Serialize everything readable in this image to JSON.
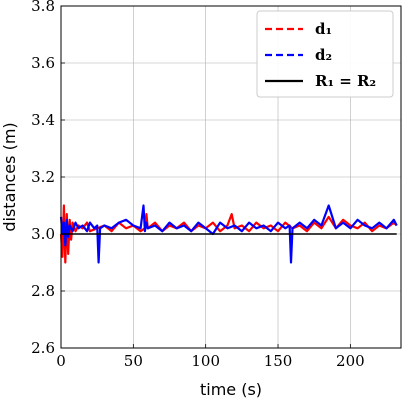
{
  "chart_data": {
    "type": "line",
    "xlabel": "time (s)",
    "ylabel": "distances (m)",
    "xlim": [
      0,
      235
    ],
    "ylim": [
      2.6,
      3.8
    ],
    "xticks": [
      "0",
      "50",
      "100",
      "150",
      "200"
    ],
    "xtick_values": [
      0,
      50,
      100,
      150,
      200
    ],
    "yticks": [
      "2.6",
      "2.8",
      "3.0",
      "3.2",
      "3.4",
      "3.6",
      "3.8"
    ],
    "ytick_values": [
      2.6,
      2.8,
      3.0,
      3.2,
      3.4,
      3.6,
      3.8
    ],
    "grid": true,
    "legend_position": "top-right",
    "series": [
      {
        "name": "d₁",
        "color": "#ff0000",
        "style": "dashed",
        "x": [
          0,
          1,
          2,
          3,
          4,
          5,
          6,
          7,
          8,
          10,
          12,
          15,
          18,
          20,
          25,
          30,
          35,
          40,
          45,
          50,
          55,
          58,
          59,
          60,
          65,
          70,
          75,
          80,
          85,
          90,
          95,
          100,
          105,
          110,
          115,
          118,
          120,
          125,
          130,
          135,
          140,
          145,
          150,
          155,
          160,
          165,
          170,
          175,
          180,
          185,
          190,
          195,
          200,
          205,
          210,
          215,
          220,
          225,
          230,
          232
        ],
        "y": [
          3.0,
          2.92,
          3.1,
          2.9,
          3.07,
          2.93,
          3.05,
          2.98,
          3.04,
          3.01,
          3.03,
          3.02,
          3.04,
          3.01,
          3.02,
          3.03,
          3.01,
          3.04,
          3.02,
          3.03,
          3.01,
          3.02,
          3.07,
          3.02,
          3.04,
          3.01,
          3.03,
          3.02,
          3.04,
          3.01,
          3.03,
          3.02,
          3.04,
          3.01,
          3.03,
          3.07,
          3.02,
          3.03,
          3.01,
          3.04,
          3.02,
          3.03,
          3.01,
          3.04,
          3.02,
          3.03,
          3.01,
          3.04,
          3.02,
          3.06,
          3.02,
          3.05,
          3.03,
          3.02,
          3.04,
          3.01,
          3.03,
          3.02,
          3.04,
          3.03
        ]
      },
      {
        "name": "d₂",
        "color": "#0000ff",
        "style": "dashed",
        "x": [
          0,
          1,
          2,
          3,
          4,
          5,
          6,
          8,
          10,
          12,
          15,
          18,
          20,
          23,
          25,
          26,
          27,
          30,
          35,
          40,
          45,
          50,
          55,
          57,
          58,
          59,
          60,
          65,
          70,
          75,
          80,
          85,
          90,
          95,
          100,
          105,
          110,
          115,
          120,
          125,
          130,
          135,
          140,
          145,
          150,
          155,
          158,
          159,
          160,
          165,
          170,
          175,
          180,
          185,
          190,
          195,
          200,
          205,
          210,
          215,
          220,
          225,
          230,
          232
        ],
        "y": [
          3.06,
          3.0,
          3.04,
          2.96,
          3.05,
          2.99,
          3.03,
          3.01,
          3.04,
          3.02,
          3.03,
          3.01,
          3.04,
          3.02,
          3.03,
          2.9,
          3.02,
          3.03,
          3.02,
          3.04,
          3.05,
          3.03,
          3.02,
          3.1,
          3.01,
          3.04,
          3.02,
          3.03,
          3.01,
          3.04,
          3.02,
          3.03,
          3.01,
          3.04,
          3.02,
          3.0,
          3.04,
          3.02,
          3.03,
          3.01,
          3.04,
          3.02,
          3.03,
          3.01,
          3.04,
          3.02,
          3.03,
          2.9,
          3.02,
          3.04,
          3.02,
          3.05,
          3.03,
          3.1,
          3.02,
          3.04,
          3.02,
          3.05,
          3.03,
          3.02,
          3.04,
          3.02,
          3.05,
          3.03
        ]
      },
      {
        "name": "R₁ = R₂",
        "color": "#000000",
        "style": "solid",
        "x": [
          0,
          232
        ],
        "y": [
          3.0,
          3.0
        ]
      }
    ]
  }
}
